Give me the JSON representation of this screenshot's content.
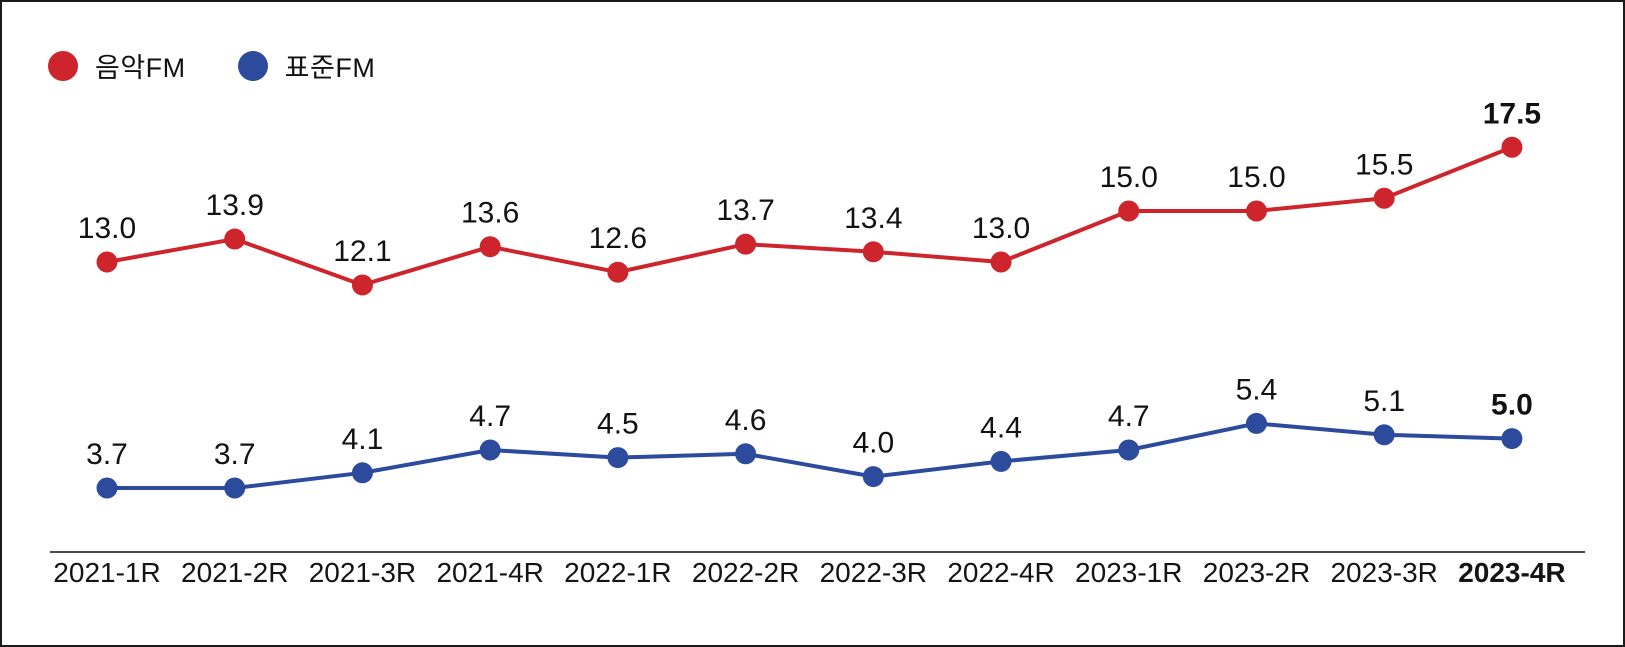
{
  "colors": {
    "music_fm_red": "#CE242B",
    "standard_fm_blue": "#2C4B9D",
    "label_text": "#121212",
    "axis_line": "#4a4a4a",
    "background": "#ffffff"
  },
  "legend": {
    "position": "top-left",
    "items": [
      {
        "label": "음악FM",
        "color": "#CE242B"
      },
      {
        "label": "표준FM",
        "color": "#2C4B9D"
      }
    ]
  },
  "chart_data": {
    "type": "line",
    "categories": [
      "2021-1R",
      "2021-2R",
      "2021-3R",
      "2021-4R",
      "2022-1R",
      "2022-2R",
      "2022-3R",
      "2022-4R",
      "2023-1R",
      "2023-2R",
      "2023-3R",
      "2023-4R"
    ],
    "series": [
      {
        "name": "음악FM",
        "color": "#CE242B",
        "values": [
          13.0,
          13.9,
          12.1,
          13.6,
          12.6,
          13.7,
          13.4,
          13.0,
          15.0,
          15.0,
          15.5,
          17.5
        ]
      },
      {
        "name": "표준FM",
        "color": "#2C4B9D",
        "values": [
          3.7,
          3.7,
          4.1,
          4.7,
          4.5,
          4.6,
          4.0,
          4.4,
          4.7,
          5.4,
          5.1,
          5.0
        ]
      }
    ],
    "title": "",
    "xlabel": "",
    "ylabel": "",
    "grid": false,
    "y_axis_visible": false,
    "x_axis_line": true,
    "value_labels": "above each point, one decimal place",
    "emphasis": "last value label of each series is bold and colored in the series color; last category label (2023-4R) is bold",
    "legend_position": "top-left"
  }
}
